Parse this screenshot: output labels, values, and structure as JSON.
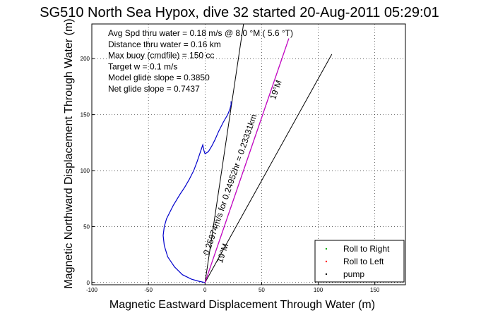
{
  "chart_data": {
    "type": "line",
    "title": "SG510 North Sea Hypox, dive 32 started 20-Aug-2011 05:29:01",
    "xlabel": "Magnetic Eastward Displacement Through Water (m)",
    "ylabel": "Magnetic Northward Displacement Through Water (m)",
    "xlim": [
      -100,
      177
    ],
    "ylim": [
      -2,
      231
    ],
    "xticks": [
      -100,
      -50,
      0,
      50,
      100,
      150
    ],
    "yticks": [
      0,
      50,
      100,
      150,
      200
    ],
    "xtick_labels": [
      "-100",
      "-50",
      "0",
      "50",
      "100",
      "150"
    ],
    "ytick_labels": [
      "0",
      "50",
      "100",
      "150",
      "200"
    ],
    "grid": true,
    "legend_position": "bottom-right",
    "legend": [
      {
        "name": "Roll to Right",
        "color": "#00aa00"
      },
      {
        "name": "Roll to Left",
        "color": "#ff0000"
      },
      {
        "name": "pump",
        "color": "#000000"
      }
    ],
    "info_lines": [
      "Avg Spd thru water =  0.18 m/s @   8.0  °M (  5.6 °T)",
      "Distance thru water =  0.16 km",
      "Max buoy (cmdfile) = 150 cc",
      "Target w = 0.1 m/s",
      "Model glide slope = 0.3850",
      "Net glide slope = 0.7437"
    ],
    "ref_lines": [
      {
        "from": [
          0,
          0
        ],
        "to": [
          34,
          231
        ]
      },
      {
        "from": [
          0,
          0
        ],
        "to": [
          112,
          204
        ]
      },
      {
        "from": [
          0,
          0
        ],
        "to": [
          74,
          218
        ]
      }
    ],
    "annotations": [
      {
        "text": "0.25974m/s for 0.24952hr = 0.23331km",
        "at": [
          3,
          24
        ],
        "angle_deg": 71
      },
      {
        "text": "19°M",
        "at": [
          62,
          163
        ],
        "angle_deg": 71
      },
      {
        "text": "19°M",
        "at": [
          15,
          17
        ],
        "angle_deg": 71
      }
    ],
    "series": [
      {
        "name": "track",
        "color": "#0000cc",
        "x": [
          0,
          -5,
          -12,
          -20,
          -27,
          -33,
          -36,
          -37,
          -36,
          -34,
          -31,
          -28,
          -25,
          -22,
          -18,
          -14,
          -10,
          -7,
          -5,
          -3,
          -2,
          -1,
          0,
          3,
          6,
          9,
          12,
          16,
          20,
          22,
          23,
          23
        ],
        "y": [
          0,
          1,
          3,
          7,
          14,
          23,
          33,
          42,
          50,
          57,
          63,
          69,
          74,
          79,
          85,
          92,
          100,
          108,
          114,
          120,
          123,
          118,
          115,
          117,
          122,
          128,
          135,
          143,
          150,
          155,
          159,
          162
        ]
      },
      {
        "name": "dive path",
        "color": "#cc00cc",
        "x": [
          0,
          74
        ],
        "y": [
          0,
          218
        ]
      }
    ]
  }
}
